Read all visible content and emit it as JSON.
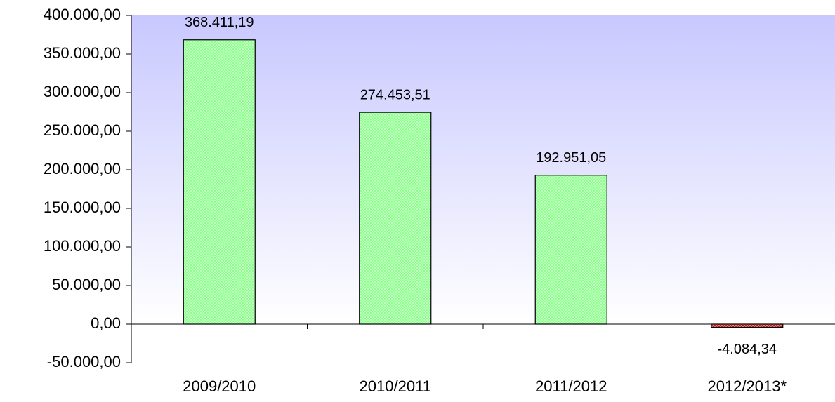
{
  "chart_data": {
    "type": "bar",
    "categories": [
      "2009/2010",
      "2010/2011",
      "2011/2012",
      "2012/2013*"
    ],
    "values": [
      368411.19,
      274453.51,
      192951.05,
      -4084.34
    ],
    "value_labels": [
      "368.411,19",
      "274.453,51",
      "192.951,05",
      "-4.084,34"
    ],
    "colors": [
      "#80ff80",
      "#80ff80",
      "#80ff80",
      "#cc0000"
    ],
    "ylim": [
      -50000,
      400000
    ],
    "yticks": [
      {
        "value": -50000,
        "label": "-50.000,00"
      },
      {
        "value": 0,
        "label": "0,00"
      },
      {
        "value": 50000,
        "label": "50.000,00"
      },
      {
        "value": 100000,
        "label": "100.000,00"
      },
      {
        "value": 150000,
        "label": "150.000,00"
      },
      {
        "value": 200000,
        "label": "200.000,00"
      },
      {
        "value": 250000,
        "label": "250.000,00"
      },
      {
        "value": 300000,
        "label": "300.000,00"
      },
      {
        "value": 350000,
        "label": "350.000,00"
      },
      {
        "value": 400000,
        "label": "400.000,00"
      }
    ]
  }
}
